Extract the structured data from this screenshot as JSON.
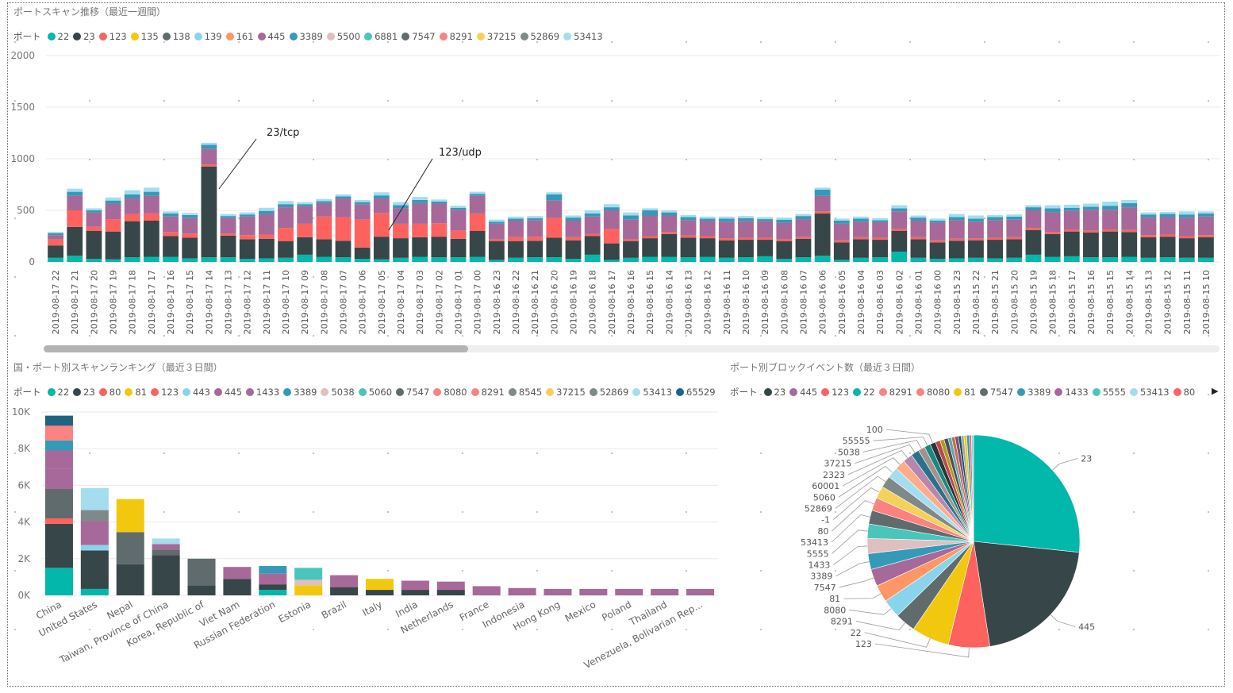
{
  "colors": {
    "22": "#01B8AA",
    "23": "#374649",
    "123": "#FD625E",
    "135": "#F2C80F",
    "138": "#5F6B6D",
    "139": "#8AD4EB",
    "161": "#FE9666",
    "445": "#A66999",
    "3389": "#3599B8",
    "5500": "#DFBFBF",
    "6881": "#4AC5BB",
    "7547": "#5F6B6D",
    "8291": "#FB8281",
    "37215": "#F4D25A",
    "52869": "#7F898A",
    "53413": "#A4DDEE",
    "80": "#FD625E",
    "81": "#F2C80F",
    "443": "#8AD4EB",
    "1433": "#A66999",
    "5038": "#DFBFBF",
    "5060": "#4AC5BB",
    "8080": "#FB8281",
    "8545": "#7F898A",
    "65529": "#1E6481",
    "5555": "#4AC5BB"
  },
  "top_chart": {
    "title": "ポートスキャン推移（最近一週間）",
    "legend_title": "ポート",
    "annotations": [
      "23/tcp",
      "123/udp"
    ]
  },
  "bottom_left": {
    "title": "国・ポート別スキャンランキング（最近３日間）",
    "legend_title": "ポート"
  },
  "bottom_right": {
    "title": "ポート別ブロックイベント数（最近３日間）",
    "legend_title": "ポート"
  },
  "chart_data": [
    {
      "type": "bar",
      "stacked": true,
      "title": "ポートスキャン推移（最近一週間）",
      "legend": [
        "22",
        "23",
        "123",
        "135",
        "138",
        "139",
        "161",
        "445",
        "3389",
        "5500",
        "6881",
        "7547",
        "8291",
        "37215",
        "52869",
        "53413"
      ],
      "ylim": [
        0,
        2000
      ],
      "yticks": [
        0,
        500,
        1000,
        1500,
        2000
      ],
      "categories": [
        "2019-08-17 22",
        "2019-08-17 21",
        "2019-08-17 20",
        "2019-08-17 19",
        "2019-08-17 18",
        "2019-08-17 17",
        "2019-08-17 16",
        "2019-08-17 15",
        "2019-08-17 14",
        "2019-08-17 13",
        "2019-08-17 12",
        "2019-08-17 11",
        "2019-08-17 10",
        "2019-08-17 09",
        "2019-08-17 08",
        "2019-08-17 07",
        "2019-08-17 06",
        "2019-08-17 05",
        "2019-08-17 04",
        "2019-08-17 03",
        "2019-08-17 02",
        "2019-08-17 01",
        "2019-08-17 00",
        "2019-08-16 23",
        "2019-08-16 22",
        "2019-08-16 21",
        "2019-08-16 20",
        "2019-08-16 19",
        "2019-08-16 18",
        "2019-08-16 17",
        "2019-08-16 16",
        "2019-08-16 15",
        "2019-08-16 14",
        "2019-08-16 13",
        "2019-08-16 12",
        "2019-08-16 11",
        "2019-08-16 10",
        "2019-08-16 09",
        "2019-08-16 08",
        "2019-08-16 07",
        "2019-08-16 06",
        "2019-08-16 05",
        "2019-08-16 04",
        "2019-08-16 03",
        "2019-08-16 02",
        "2019-08-16 01",
        "2019-08-16 00",
        "2019-08-15 23",
        "2019-08-15 22",
        "2019-08-15 21",
        "2019-08-15 20",
        "2019-08-15 19",
        "2019-08-15 18",
        "2019-08-15 17",
        "2019-08-15 16",
        "2019-08-15 15",
        "2019-08-15 14",
        "2019-08-15 13",
        "2019-08-15 12",
        "2019-08-15 11",
        "2019-08-15 10"
      ],
      "series": [
        {
          "name": "22",
          "values": [
            40,
            60,
            30,
            25,
            45,
            50,
            50,
            35,
            45,
            45,
            30,
            35,
            40,
            70,
            50,
            45,
            30,
            25,
            40,
            50,
            45,
            45,
            50,
            20,
            40,
            45,
            45,
            30,
            70,
            20,
            40,
            50,
            50,
            45,
            50,
            40,
            45,
            55,
            30,
            45,
            60,
            20,
            40,
            45,
            100,
            40,
            30,
            35,
            40,
            35,
            40,
            70,
            50,
            55,
            45,
            45,
            50,
            40,
            45,
            40,
            40
          ]
        },
        {
          "name": "23",
          "values": [
            120,
            280,
            270,
            270,
            350,
            350,
            200,
            200,
            880,
            210,
            190,
            190,
            160,
            170,
            170,
            160,
            110,
            220,
            190,
            190,
            200,
            180,
            250,
            180,
            160,
            160,
            190,
            180,
            180,
            160,
            160,
            180,
            220,
            190,
            180,
            170,
            170,
            160,
            170,
            180,
            410,
            170,
            180,
            170,
            200,
            180,
            160,
            170,
            170,
            180,
            180,
            240,
            220,
            240,
            240,
            250,
            240,
            200,
            200,
            190,
            200
          ]
        },
        {
          "name": "123",
          "values": [
            60,
            160,
            40,
            120,
            70,
            70,
            40,
            40,
            20,
            20,
            40,
            40,
            130,
            130,
            220,
            230,
            270,
            230,
            140,
            130,
            130,
            80,
            170,
            20,
            40,
            40,
            190,
            30,
            20,
            140,
            20,
            20,
            20,
            20,
            20,
            20,
            20,
            20,
            20,
            20,
            20,
            20,
            20,
            20,
            20,
            20,
            20,
            20,
            20,
            20,
            20,
            20,
            20,
            20,
            20,
            20,
            20,
            20,
            20,
            20,
            20
          ]
        },
        {
          "name": "445",
          "values": [
            40,
            140,
            140,
            150,
            150,
            170,
            150,
            150,
            150,
            150,
            180,
            200,
            200,
            170,
            130,
            180,
            150,
            140,
            150,
            200,
            190,
            200,
            170,
            150,
            160,
            160,
            170,
            160,
            170,
            180,
            190,
            200,
            160,
            150,
            150,
            160,
            160,
            160,
            160,
            170,
            150,
            160,
            150,
            150,
            170,
            160,
            170,
            180,
            160,
            170,
            170,
            170,
            190,
            180,
            200,
            190,
            220,
            170,
            170,
            180,
            180
          ]
        },
        {
          "name": "3389",
          "values": [
            20,
            40,
            20,
            30,
            40,
            40,
            30,
            30,
            40,
            20,
            20,
            30,
            30,
            20,
            20,
            20,
            20,
            30,
            30,
            30,
            20,
            20,
            20,
            20,
            20,
            20,
            60,
            30,
            30,
            30,
            40,
            50,
            30,
            30,
            20,
            30,
            30,
            20,
            30,
            30,
            60,
            30,
            30,
            20,
            30,
            30,
            20,
            30,
            30,
            30,
            30,
            30,
            40,
            30,
            30,
            40,
            40,
            30,
            30,
            30,
            30
          ]
        },
        {
          "name": "53413",
          "values": [
            10,
            30,
            20,
            30,
            40,
            40,
            20,
            20,
            20,
            20,
            20,
            30,
            30,
            20,
            20,
            20,
            20,
            30,
            30,
            30,
            20,
            20,
            20,
            20,
            20,
            20,
            20,
            20,
            30,
            30,
            30,
            20,
            20,
            20,
            20,
            20,
            20,
            20,
            20,
            20,
            20,
            20,
            20,
            20,
            30,
            20,
            20,
            30,
            30,
            20,
            20,
            20,
            30,
            30,
            30,
            40,
            30,
            20,
            20,
            30,
            20
          ]
        }
      ]
    },
    {
      "type": "bar",
      "stacked": true,
      "title": "国・ポート別スキャンランキング（最近３日間）",
      "legend": [
        "22",
        "23",
        "80",
        "81",
        "123",
        "443",
        "445",
        "1433",
        "3389",
        "5038",
        "5060",
        "7547",
        "8080",
        "8291",
        "8545",
        "37215",
        "52869",
        "53413",
        "65529"
      ],
      "ylim": [
        0,
        10000
      ],
      "yticks": [
        "0K",
        "2K",
        "4K",
        "6K",
        "8K",
        "10K"
      ],
      "categories": [
        "China",
        "United States",
        "Nepal",
        "Taiwan, Province of China",
        "Korea, Republic of",
        "Viet Nam",
        "Russian Federation",
        "Estonia",
        "Brazil",
        "Italy",
        "India",
        "Netherlands",
        "France",
        "Indonesia",
        "Hong Kong",
        "Mexico",
        "Poland",
        "Thailand",
        "Venezuela, Bolivarian Rep..."
      ],
      "series": [
        {
          "name": "22",
          "values": [
            1500,
            350,
            0,
            0,
            0,
            0,
            300,
            0,
            0,
            0,
            0,
            0,
            0,
            0,
            0,
            0,
            0,
            0,
            0
          ]
        },
        {
          "name": "23",
          "values": [
            2400,
            2100,
            1700,
            2200,
            550,
            900,
            300,
            0,
            450,
            300,
            300,
            300,
            0,
            0,
            0,
            0,
            0,
            0,
            0
          ]
        },
        {
          "name": "123",
          "values": [
            300,
            0,
            0,
            0,
            0,
            0,
            0,
            0,
            0,
            0,
            0,
            0,
            0,
            0,
            0,
            0,
            0,
            0,
            0
          ]
        },
        {
          "name": "7547",
          "values": [
            1600,
            0,
            1750,
            300,
            1450,
            0,
            0,
            0,
            0,
            0,
            0,
            0,
            0,
            0,
            0,
            0,
            0,
            0,
            0
          ]
        },
        {
          "name": "81",
          "values": [
            0,
            0,
            1800,
            0,
            0,
            0,
            0,
            550,
            0,
            600,
            0,
            0,
            0,
            0,
            0,
            0,
            0,
            0,
            0
          ]
        },
        {
          "name": "443",
          "values": [
            0,
            300,
            0,
            0,
            0,
            0,
            0,
            0,
            0,
            0,
            0,
            0,
            0,
            0,
            0,
            0,
            0,
            0,
            0
          ]
        },
        {
          "name": "5038",
          "values": [
            0,
            0,
            0,
            0,
            0,
            0,
            0,
            300,
            0,
            0,
            0,
            0,
            0,
            0,
            0,
            0,
            0,
            0,
            0
          ]
        },
        {
          "name": "445",
          "values": [
            1100,
            1300,
            0,
            300,
            0,
            650,
            600,
            0,
            650,
            0,
            500,
            450,
            500,
            400,
            350,
            350,
            350,
            350,
            350
          ]
        },
        {
          "name": "52869",
          "values": [
            0,
            600,
            0,
            0,
            0,
            0,
            0,
            0,
            0,
            0,
            0,
            0,
            0,
            0,
            0,
            0,
            0,
            0,
            0
          ]
        },
        {
          "name": "5060",
          "values": [
            0,
            0,
            0,
            0,
            0,
            0,
            0,
            650,
            0,
            0,
            0,
            0,
            0,
            0,
            0,
            0,
            0,
            0,
            0
          ]
        },
        {
          "name": "53413",
          "values": [
            0,
            1200,
            0,
            300,
            0,
            0,
            0,
            0,
            0,
            0,
            0,
            0,
            0,
            0,
            0,
            0,
            0,
            0,
            0
          ]
        },
        {
          "name": "1433",
          "values": [
            1000,
            0,
            0,
            0,
            0,
            0,
            0,
            0,
            0,
            0,
            0,
            0,
            0,
            0,
            0,
            0,
            0,
            0,
            0
          ]
        },
        {
          "name": "3389",
          "values": [
            550,
            0,
            0,
            0,
            0,
            0,
            400,
            0,
            0,
            0,
            0,
            0,
            0,
            0,
            0,
            0,
            0,
            0,
            0
          ]
        },
        {
          "name": "8080",
          "values": [
            800,
            0,
            0,
            0,
            0,
            0,
            0,
            0,
            0,
            0,
            0,
            0,
            0,
            0,
            0,
            0,
            0,
            0,
            0
          ]
        },
        {
          "name": "65529",
          "values": [
            550,
            0,
            0,
            0,
            0,
            0,
            0,
            0,
            0,
            0,
            0,
            0,
            0,
            0,
            0,
            0,
            0,
            0,
            0
          ]
        }
      ]
    },
    {
      "type": "pie",
      "title": "ポート別ブロックイベント数（最近３日間）",
      "legend": [
        "23",
        "445",
        "123",
        "22",
        "8291",
        "8080",
        "81",
        "7547",
        "3389",
        "1433",
        "5555",
        "53413",
        "80"
      ],
      "slices": [
        {
          "label": "23",
          "value": 25.5,
          "color": "#01B8AA"
        },
        {
          "label": "445",
          "value": 20.0,
          "color": "#374649"
        },
        {
          "label": "123",
          "value": 6.0,
          "color": "#FD625E"
        },
        {
          "label": "22",
          "value": 5.5,
          "color": "#F2C80F"
        },
        {
          "label": "8291",
          "value": 3.0,
          "color": "#5F6B6D"
        },
        {
          "label": "8080",
          "value": 2.7,
          "color": "#8AD4EB"
        },
        {
          "label": "81",
          "value": 2.5,
          "color": "#FE9666"
        },
        {
          "label": "7547",
          "value": 2.5,
          "color": "#A66999"
        },
        {
          "label": "3389",
          "value": 2.3,
          "color": "#3599B8"
        },
        {
          "label": "1433",
          "value": 2.2,
          "color": "#DFBFBF"
        },
        {
          "label": "5555",
          "value": 2.1,
          "color": "#4AC5BB"
        },
        {
          "label": "53413",
          "value": 2.0,
          "color": "#5F6B6D"
        },
        {
          "label": "80",
          "value": 1.9,
          "color": "#FB8281"
        },
        {
          "label": "-1",
          "value": 1.8,
          "color": "#F4D25A"
        },
        {
          "label": "52869",
          "value": 1.7,
          "color": "#7F898A"
        },
        {
          "label": "5060",
          "value": 1.6,
          "color": "#A4DDEE"
        },
        {
          "label": "60001",
          "value": 1.5,
          "color": "#FDAB89"
        },
        {
          "label": "2323",
          "value": 1.4,
          "color": "#B687AC"
        },
        {
          "label": "37215",
          "value": 1.2,
          "color": "#28738A"
        },
        {
          "label": "5038",
          "value": 1.0,
          "color": "#A78F8F"
        },
        {
          "label": "55555",
          "value": 0.9,
          "color": "#168980"
        },
        {
          "label": "100",
          "value": 0.8,
          "color": "#293537"
        },
        {
          "label": "",
          "value": 0.7,
          "color": "#BB4A4A"
        },
        {
          "label": "",
          "value": 0.6,
          "color": "#B59525"
        },
        {
          "label": "",
          "value": 0.6,
          "color": "#475052"
        },
        {
          "label": "",
          "value": 0.5,
          "color": "#6A9FB0"
        },
        {
          "label": "",
          "value": 0.5,
          "color": "#BD7150"
        },
        {
          "label": "",
          "value": 0.5,
          "color": "#7B4F71"
        },
        {
          "label": "",
          "value": 0.4,
          "color": "#1B4D5C"
        },
        {
          "label": "",
          "value": 0.4,
          "color": "#A3A3A3"
        },
        {
          "label": "",
          "value": 0.4,
          "color": "#F2C80F"
        },
        {
          "label": "",
          "value": 0.4,
          "color": "#3599B8"
        },
        {
          "label": "",
          "value": 0.3,
          "color": "#FD625E"
        },
        {
          "label": "",
          "value": 0.3,
          "color": "#8AD4EB"
        }
      ]
    }
  ]
}
